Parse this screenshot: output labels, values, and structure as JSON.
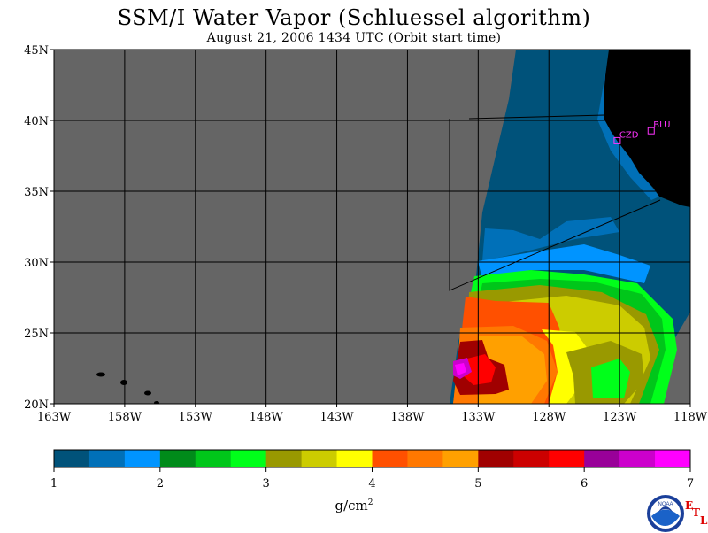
{
  "title": "SSM/I Water Vapor (Schluessel algorithm)",
  "subtitle": "August 21, 2006  1434 UTC  (Orbit start time)",
  "map": {
    "lat_range": [
      20,
      45
    ],
    "lon_range": [
      -163,
      -118
    ],
    "lat_labels": [
      "45N",
      "40N",
      "35N",
      "30N",
      "25N",
      "20N"
    ],
    "lon_labels": [
      "163W",
      "158W",
      "153W",
      "148W",
      "143W",
      "138W",
      "133W",
      "128W",
      "123W",
      "118W"
    ],
    "no_data_color": "#656565",
    "land_color": "#000000",
    "stations": [
      {
        "id": "CZD",
        "label": "CZD",
        "lat": 38.6,
        "lon": -123.2
      },
      {
        "id": "BLU",
        "label": "BLU",
        "lat": 39.3,
        "lon": -120.8
      }
    ],
    "station_color": "#ff33ff"
  },
  "colorbar": {
    "colors": [
      "#00527a",
      "#0070b8",
      "#0094ff",
      "#008b1a",
      "#00c61a",
      "#00ff1a",
      "#999900",
      "#cccc00",
      "#ffff00",
      "#ff5000",
      "#ff7800",
      "#ffa000",
      "#a00000",
      "#cc0000",
      "#ff0000",
      "#990099",
      "#cc00cc",
      "#ff00ff"
    ],
    "tick_labels": [
      "1",
      "2",
      "3",
      "4",
      "5",
      "6",
      "7"
    ],
    "unit_label": "g/cm",
    "unit_sup": "2"
  },
  "logo": {
    "text": "NOAA",
    "letters": [
      "E",
      "T",
      "L"
    ]
  }
}
